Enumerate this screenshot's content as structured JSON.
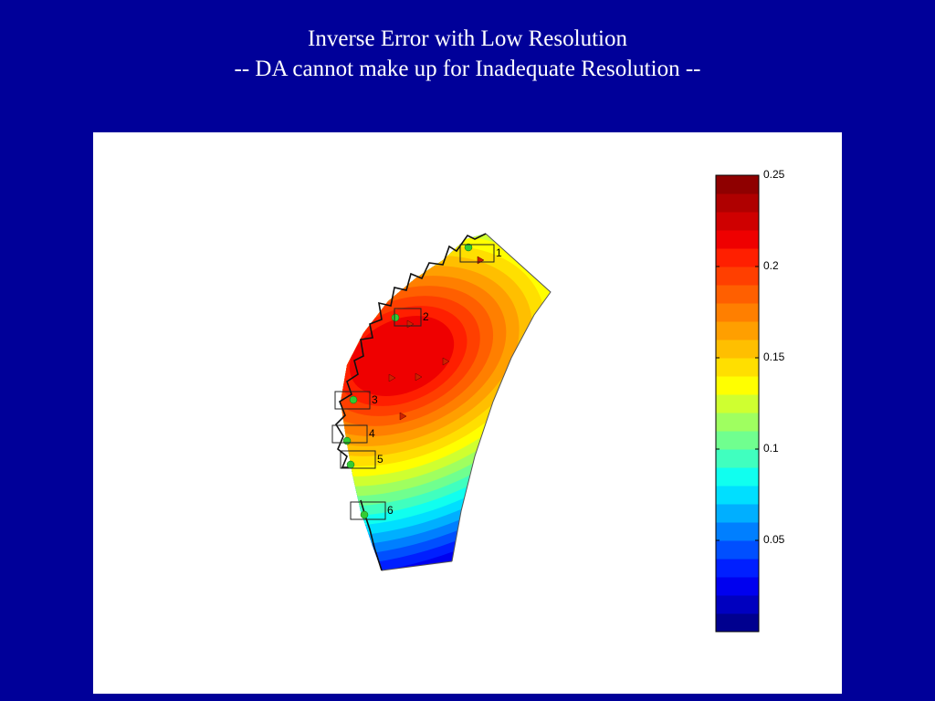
{
  "header": {
    "title": "Inverse Error with Low Resolution",
    "subtitle": "-- DA cannot make up for Inadequate Resolution --"
  },
  "map": {
    "stations": [
      {
        "label": "1"
      },
      {
        "label": "2"
      },
      {
        "label": "3"
      },
      {
        "label": "4"
      },
      {
        "label": "5"
      },
      {
        "label": "6"
      }
    ]
  },
  "colorbar": {
    "lim": [
      0,
      0.25
    ],
    "ticks": [
      0.05,
      0.1,
      0.15,
      0.2,
      0.25
    ],
    "colors": [
      "#00008f",
      "#0000bf",
      "#0000ef",
      "#001fff",
      "#004fff",
      "#007fff",
      "#00afff",
      "#00dfff",
      "#10ffef",
      "#40ffbf",
      "#70ff8f",
      "#9fff60",
      "#cfff30",
      "#ffff00",
      "#ffdf00",
      "#ffbf00",
      "#ff9f00",
      "#ff7f00",
      "#ff5f00",
      "#ff3f00",
      "#ff1f00",
      "#ef0000",
      "#cf0000",
      "#af0000",
      "#8f0000"
    ]
  }
}
